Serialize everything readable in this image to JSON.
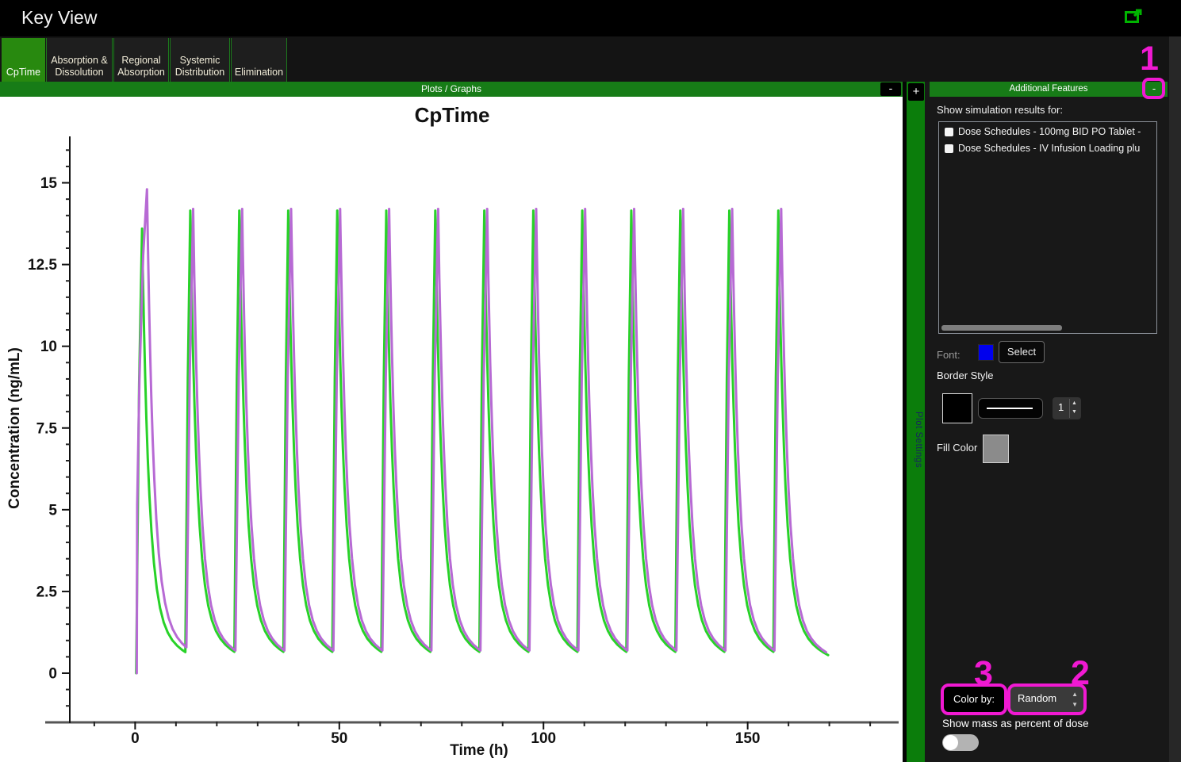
{
  "window": {
    "title": "Key View",
    "open_icon": "open-in-new-window"
  },
  "tabs": [
    {
      "lines": [
        "CpTime"
      ],
      "selected": true
    },
    {
      "lines": [
        "Absorption &",
        "Dissolution"
      ],
      "selected": false
    },
    {
      "lines": [
        "Regional",
        "Absorption"
      ],
      "selected": false
    },
    {
      "lines": [
        "Systemic",
        "Distribution"
      ],
      "selected": false
    },
    {
      "lines": [
        "Elimination"
      ],
      "selected": false
    }
  ],
  "plots_header": {
    "title": "Plots / Graphs",
    "collapse_label": "-",
    "expand_label": "+"
  },
  "plot_settings_strip": {
    "label": "Plot Settings"
  },
  "panel": {
    "header": {
      "title": "Additional Features",
      "collapse_label": "-"
    },
    "results_label": "Show simulation results for:",
    "results_list": [
      {
        "label": "Dose Schedules - 100mg BID PO Tablet -",
        "checked": false
      },
      {
        "label": "Dose Schedules - IV Infusion Loading plu",
        "checked": false
      }
    ],
    "font_row": {
      "label": "Font:",
      "swatch_color": "#0000ed",
      "button_label": "Select"
    },
    "border_style": {
      "label": "Border Style",
      "swatch_color": "#000000",
      "width_value": "1"
    },
    "fill_color": {
      "label": "Fill Color",
      "swatch_color": "#8b8b8b"
    },
    "color_by": {
      "label": "Color by:",
      "value": "Random"
    },
    "mass_toggle": {
      "label": "Show mass as percent of dose",
      "state": "off"
    }
  },
  "annotations": {
    "color": "#f019d2",
    "items": [
      {
        "label": "1"
      },
      {
        "label": "2"
      },
      {
        "label": "3"
      }
    ]
  },
  "chart_data": {
    "type": "line",
    "title": "CpTime",
    "xlabel": "Time (h)",
    "ylabel": "Concentration (ng/mL)",
    "xlim": [
      -16,
      186
    ],
    "ylim": [
      -1.48,
      16.42
    ],
    "xticks": [
      0,
      50,
      100,
      150
    ],
    "xminor_step": 10,
    "xminor_range": [
      -10,
      180
    ],
    "yticks": [
      0,
      2.5,
      5,
      7.5,
      10,
      12.5,
      15
    ],
    "yminor_step": 0.5,
    "yminor_range": [
      -1,
      16
    ],
    "grid": false,
    "legend": "none",
    "dose_interval_h": 12,
    "n_doses": 14,
    "sim_end_h": 170,
    "trough_ng_ml": 0.7,
    "decay": {
      "a1": 0.85,
      "tau1": 1.6,
      "a2": 0.15,
      "tau2": 9.0
    },
    "decay_sample_offsets": [
      0.15,
      0.3,
      0.5,
      0.75,
      1.05,
      1.4,
      1.8,
      2.3,
      2.9,
      3.6,
      4.4,
      5.3,
      6.3,
      7.4,
      8.6,
      9.8,
      11,
      12.2,
      13.5
    ],
    "series": [
      {
        "name": "100mg BID PO Tablet",
        "color": "#28d228",
        "start_points": [
          [
            0.25,
            0
          ]
        ],
        "first_peak_t": 1.7,
        "first_peak": 13.6,
        "peak_offset_h": 1.5,
        "peak": 14.15,
        "rise_lag_h": 0.3
      },
      {
        "name": "IV Infusion Loading plus",
        "color": "#b76ad4",
        "start_points": [
          [
            0.4,
            0
          ],
          [
            0.5,
            5.15
          ],
          [
            1.05,
            9.0
          ]
        ],
        "first_peak_t": 2.9,
        "first_peak": 14.8,
        "peak_offset_h": 2.2,
        "peak": 14.2,
        "rise_lag_h": 0.55
      }
    ]
  }
}
